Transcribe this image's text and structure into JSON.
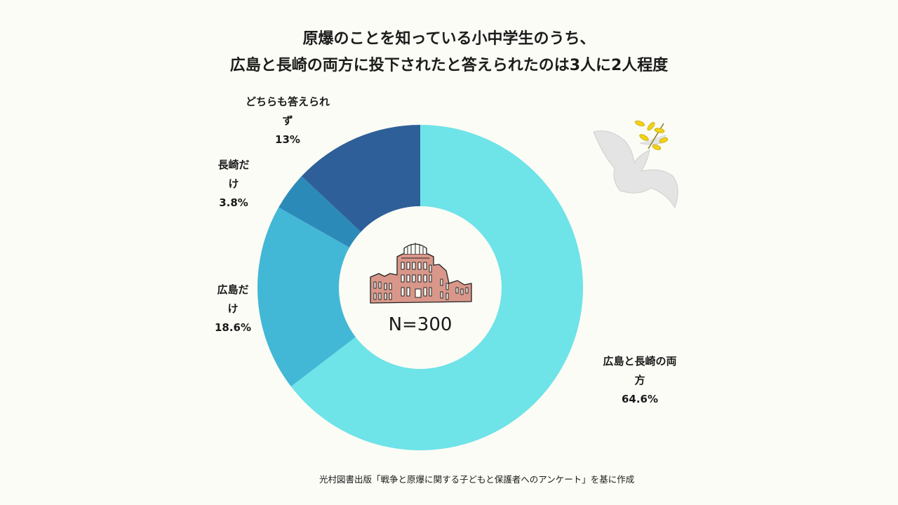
{
  "title_lines": [
    "原爆のことを知っている小中学生のうち、",
    "広島と長崎の両方に投下されたと答えられたのは3人に2人程度"
  ],
  "center_label": "N=300",
  "source": "光村図書出版「戦争と原爆に関する子どもと保護者へのアンケート」を基に作成",
  "colors": {
    "background": "#fbfcf5",
    "both": "#6ee3e8",
    "hiroshima_only": "#42b8d6",
    "nagasaki_only": "#2c8ab8",
    "neither": "#2e5f99",
    "dome": "#d9978a"
  },
  "icons": [
    "atomic-bomb-dome-icon",
    "peace-dove-icon"
  ],
  "chart_data": {
    "type": "pie",
    "donut": true,
    "n": "N=300",
    "slices": [
      {
        "label_lines": [
          "広島と長崎の両",
          "方"
        ],
        "value": 64.6,
        "value_text": "64.6%",
        "color": "#6ee3e8"
      },
      {
        "label_lines": [
          "広島だ",
          "け"
        ],
        "value": 18.6,
        "value_text": "18.6%",
        "color": "#42b8d6"
      },
      {
        "label_lines": [
          "長崎だ",
          "け"
        ],
        "value": 3.8,
        "value_text": "3.8%",
        "color": "#2c8ab8"
      },
      {
        "label_lines": [
          "どちらも答えられ",
          "ず"
        ],
        "value": 13,
        "value_text": "13%",
        "color": "#2e5f99"
      }
    ]
  }
}
